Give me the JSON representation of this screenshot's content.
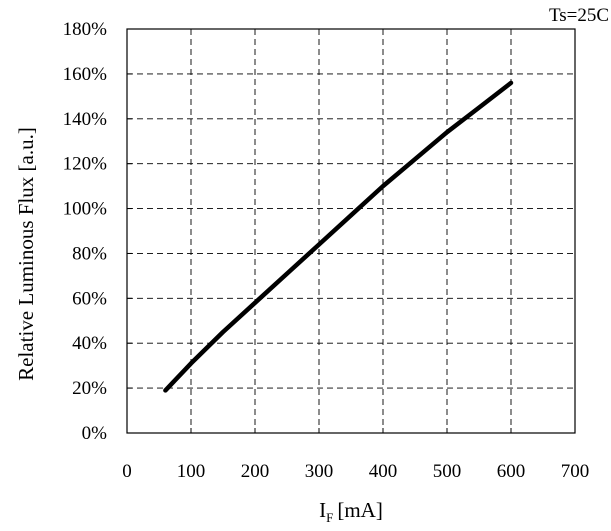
{
  "chart_data": {
    "type": "line",
    "title": "",
    "annotation": "Ts=25C",
    "xlabel": {
      "main": "I",
      "sub": "F",
      "unit": "[mA]"
    },
    "ylabel": "Relative Luminous Flux [a.u.]",
    "xlim": [
      0,
      700
    ],
    "ylim": [
      0,
      180
    ],
    "xticks": [
      0,
      100,
      200,
      300,
      400,
      500,
      600,
      700
    ],
    "yticks": [
      0,
      20,
      40,
      60,
      80,
      100,
      120,
      140,
      160,
      180
    ],
    "xtick_labels": [
      "0",
      "100",
      "200",
      "300",
      "400",
      "500",
      "600",
      "700"
    ],
    "ytick_labels": [
      "0%",
      "20%",
      "40%",
      "60%",
      "80%",
      "100%",
      "120%",
      "140%",
      "160%",
      "180%"
    ],
    "grid": true,
    "grid_style": "dashed",
    "legend": "none",
    "series": [
      {
        "color": "#000000",
        "x": [
          60,
          100,
          150,
          200,
          250,
          300,
          350,
          400,
          450,
          500,
          550,
          600
        ],
        "y": [
          19,
          31,
          45,
          58,
          71,
          84,
          97,
          110,
          122,
          134,
          145,
          156
        ]
      }
    ]
  }
}
